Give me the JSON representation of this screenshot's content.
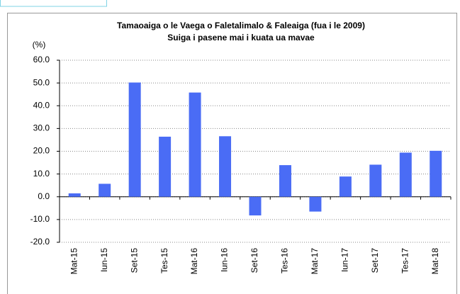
{
  "chart_data": {
    "type": "bar",
    "title": "Tamaoaiga o le Vaega o Faletalimalo & Faleaiga (fua i le 2009)",
    "subtitle": "Suiga i pasene mai i kuata ua mavae",
    "y_label": "(%)",
    "categories": [
      "Mat-15",
      "Iun-15",
      "Set-15",
      "Tes-15",
      "Mat-16",
      "Iun-16",
      "Set-16",
      "Tes-16",
      "Mat-17",
      "Iun-17",
      "Set-17",
      "Tes-17",
      "Mat-18"
    ],
    "values": [
      1.5,
      5.7,
      50.2,
      26.4,
      45.8,
      26.6,
      -8.2,
      13.9,
      -6.5,
      8.9,
      14.1,
      19.4,
      20.2
    ],
    "color": "#4a6cf5",
    "ylim": [
      -20,
      60
    ],
    "yticks": [
      {
        "value": -20,
        "label": "-20.0"
      },
      {
        "value": -10,
        "label": "-10.0"
      },
      {
        "value": 0,
        "label": "0.0"
      },
      {
        "value": 10,
        "label": "10.0"
      },
      {
        "value": 20,
        "label": "20.0"
      },
      {
        "value": 30,
        "label": "30.0"
      },
      {
        "value": 40,
        "label": "40.0"
      },
      {
        "value": 50,
        "label": "50.0"
      },
      {
        "value": 60,
        "label": "60.0"
      }
    ],
    "grid": true
  }
}
